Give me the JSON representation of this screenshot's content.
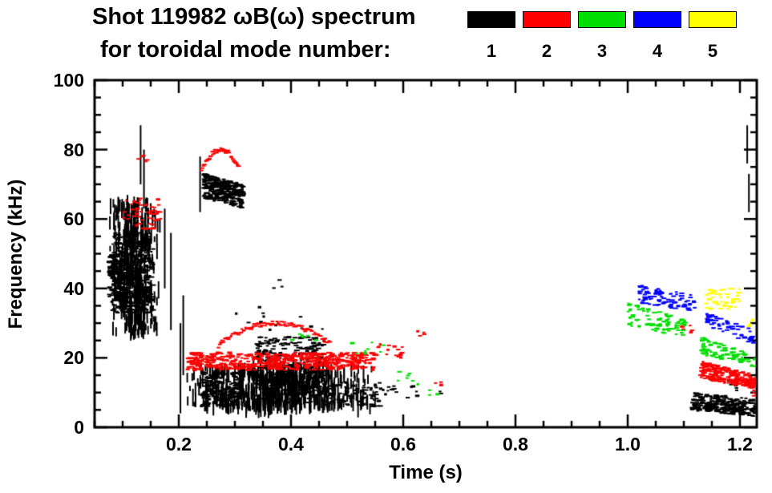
{
  "title": {
    "line1": "Shot 119982 ωB(ω) spectrum",
    "line2": "for toroidal mode number:"
  },
  "legend": {
    "position": "top-right",
    "entries": [
      {
        "label": "1",
        "color": "#000000"
      },
      {
        "label": "2",
        "color": "#ff0000"
      },
      {
        "label": "3",
        "color": "#00dd00"
      },
      {
        "label": "4",
        "color": "#0000ff"
      },
      {
        "label": "5",
        "color": "#ffff00"
      }
    ]
  },
  "chart_data": {
    "type": "scatter",
    "title": "Shot 119982 ωB(ω) spectrum for toroidal mode number",
    "xlabel": "Time (s)",
    "ylabel": "Frequency (kHz)",
    "xlim": [
      0.05,
      1.23
    ],
    "ylim": [
      0,
      100
    ],
    "xticks": [
      0.2,
      0.4,
      0.6,
      0.8,
      1.0,
      1.2
    ],
    "xtick_labels": [
      "0.2",
      "0.4",
      "0.6",
      "0.8",
      "1.0",
      "1.2"
    ],
    "yticks": [
      0,
      20,
      40,
      60,
      80,
      100
    ],
    "ytick_labels": [
      "0",
      "20",
      "40",
      "60",
      "80",
      "100"
    ],
    "x_minor_step": 0.05,
    "y_minor_step": 5,
    "grid": false,
    "series": [
      {
        "name": "toroidal mode n=1",
        "legend_label": "1",
        "color": "#000000",
        "clusters": [
          {
            "type": "striated",
            "t": [
              0.073,
              0.168
            ],
            "f": [
              27,
              65
            ],
            "n": 420,
            "seed": 11
          },
          {
            "type": "blob",
            "t": [
              0.082,
              0.155
            ],
            "f": [
              33,
              56
            ],
            "n": 380,
            "seed": 12
          },
          {
            "type": "blob",
            "t": [
              0.076,
              0.102
            ],
            "f": [
              36,
              50
            ],
            "n": 130,
            "seed": 13
          },
          {
            "type": "vline",
            "t": 0.132,
            "f": [
              70,
              87
            ]
          },
          {
            "type": "vline",
            "t": 0.138,
            "f": [
              63,
              80
            ]
          },
          {
            "type": "vline",
            "t": 0.175,
            "f": [
              40,
              63
            ]
          },
          {
            "type": "vline",
            "t": 0.186,
            "f": [
              28,
              56
            ]
          },
          {
            "type": "vline",
            "t": 0.203,
            "f": [
              4,
              30
            ]
          },
          {
            "type": "vline",
            "t": 0.208,
            "f": [
              15,
              38
            ]
          },
          {
            "type": "vline",
            "t": 0.238,
            "f": [
              62,
              78
            ]
          },
          {
            "type": "slant",
            "t": [
              0.245,
              0.315
            ],
            "fa": [
              66,
              73
            ],
            "fb": [
              63,
              70
            ],
            "n": 300,
            "seed": 14
          },
          {
            "type": "striated",
            "t": [
              0.205,
              0.56
            ],
            "f": [
              5,
              17
            ],
            "n": 620,
            "seed": 15
          },
          {
            "type": "blob",
            "t": [
              0.24,
              0.31
            ],
            "f": [
              6,
              16
            ],
            "n": 170,
            "seed": 16
          },
          {
            "type": "blob",
            "t": [
              0.335,
              0.46
            ],
            "f": [
              7,
              26
            ],
            "n": 390,
            "seed": 17
          },
          {
            "type": "scatter",
            "t": [
              0.46,
              0.56
            ],
            "f": [
              6,
              13
            ],
            "n": 90,
            "seed": 18
          },
          {
            "type": "scatter",
            "t": [
              0.56,
              0.63
            ],
            "f": [
              8,
              12
            ],
            "n": 14,
            "seed": 19
          },
          {
            "type": "scatter",
            "t": [
              0.3,
              0.46
            ],
            "f": [
              28,
              35
            ],
            "n": 12,
            "seed": 20
          },
          {
            "type": "scatter",
            "t": [
              0.36,
              0.39
            ],
            "f": [
              40,
              44
            ],
            "n": 3,
            "seed": 21
          },
          {
            "type": "scatter",
            "t": [
              0.655,
              0.668
            ],
            "f": [
              9,
              11
            ],
            "n": 2,
            "seed": 22
          },
          {
            "type": "slant",
            "t": [
              1.115,
              1.235
            ],
            "fa": [
              5,
              10
            ],
            "fb": [
              3,
              8
            ],
            "n": 300,
            "seed": 23
          },
          {
            "type": "scatter",
            "t": [
              1.18,
              1.22
            ],
            "f": [
              10,
              14
            ],
            "n": 8,
            "seed": 24
          },
          {
            "type": "vline",
            "t": 1.213,
            "f": [
              76,
              87
            ]
          },
          {
            "type": "vline",
            "t": 1.216,
            "f": [
              62,
              73
            ]
          }
        ]
      },
      {
        "name": "toroidal mode n=2",
        "legend_label": "2",
        "color": "#ff0000",
        "clusters": [
          {
            "type": "scatter",
            "t": [
              0.125,
              0.168
            ],
            "f": [
              57,
              66
            ],
            "n": 40,
            "seed": 31
          },
          {
            "type": "scatter",
            "t": [
              0.1,
              0.13
            ],
            "f": [
              60,
              66
            ],
            "n": 12,
            "seed": 32
          },
          {
            "type": "arc",
            "t": [
              0.24,
              0.307
            ],
            "f0": 74,
            "fp": 80,
            "f1": 75,
            "n": 46,
            "seed": 33
          },
          {
            "type": "scatter",
            "t": [
              0.128,
              0.148
            ],
            "f": [
              76,
              79
            ],
            "n": 5,
            "seed": 34
          },
          {
            "type": "arc",
            "t": [
              0.27,
              0.47
            ],
            "f0": 23.5,
            "fp": 30,
            "f1": 24,
            "n": 95,
            "seed": 35
          },
          {
            "type": "blob",
            "t": [
              0.215,
              0.55
            ],
            "f": [
              16.5,
              21.5
            ],
            "n": 540,
            "seed": 36
          },
          {
            "type": "scatter",
            "t": [
              0.55,
              0.6
            ],
            "f": [
              20,
              24
            ],
            "n": 16,
            "seed": 37
          },
          {
            "type": "scatter",
            "t": [
              0.62,
              0.64
            ],
            "f": [
              26,
              28
            ],
            "n": 4,
            "seed": 38
          },
          {
            "type": "scatter",
            "t": [
              0.655,
              0.67
            ],
            "f": [
              12,
              14
            ],
            "n": 4,
            "seed": 39
          },
          {
            "type": "scatter",
            "t": [
              1.09,
              1.12
            ],
            "f": [
              27,
              30
            ],
            "n": 8,
            "seed": 40
          },
          {
            "type": "slant",
            "t": [
              1.13,
              1.23
            ],
            "fa": [
              14,
              19
            ],
            "fb": [
              11,
              15
            ],
            "n": 220,
            "seed": 41
          },
          {
            "type": "scatter",
            "t": [
              1.222,
              1.232
            ],
            "f": [
              8,
              11
            ],
            "n": 6,
            "seed": 42
          }
        ]
      },
      {
        "name": "toroidal mode n=3",
        "legend_label": "3",
        "color": "#00dd00",
        "clusters": [
          {
            "type": "scatter",
            "t": [
              0.4,
              0.445
            ],
            "f": [
              25,
              28
            ],
            "n": 7,
            "seed": 51
          },
          {
            "type": "scatter",
            "t": [
              0.5,
              0.565
            ],
            "f": [
              21,
              25
            ],
            "n": 9,
            "seed": 52
          },
          {
            "type": "scatter",
            "t": [
              0.585,
              0.635
            ],
            "f": [
              12,
              16
            ],
            "n": 7,
            "seed": 53
          },
          {
            "type": "scatter",
            "t": [
              0.645,
              0.663
            ],
            "f": [
              9,
              11
            ],
            "n": 3,
            "seed": 54
          },
          {
            "type": "slant",
            "t": [
              1.0,
              1.105
            ],
            "fa": [
              29,
              36
            ],
            "fb": [
              26,
              31
            ],
            "n": 85,
            "seed": 55
          },
          {
            "type": "slant",
            "t": [
              1.13,
              1.23
            ],
            "fa": [
              21,
              26
            ],
            "fb": [
              17,
              21
            ],
            "n": 85,
            "seed": 56
          }
        ]
      },
      {
        "name": "toroidal mode n=4",
        "legend_label": "4",
        "color": "#0000ff",
        "clusters": [
          {
            "type": "slant",
            "t": [
              1.02,
              1.12
            ],
            "fa": [
              36,
              41
            ],
            "fb": [
              33,
              38
            ],
            "n": 85,
            "seed": 61
          },
          {
            "type": "slant",
            "t": [
              1.14,
              1.225
            ],
            "fa": [
              29,
              33
            ],
            "fb": [
              24,
              28
            ],
            "n": 60,
            "seed": 62
          }
        ]
      },
      {
        "name": "toroidal mode n=5",
        "legend_label": "5",
        "color": "#ffff00",
        "clusters": [
          {
            "type": "blob",
            "t": [
              1.14,
              1.2
            ],
            "f": [
              34,
              40
            ],
            "n": 48,
            "seed": 71
          },
          {
            "type": "scatter",
            "t": [
              1.205,
              1.225
            ],
            "f": [
              29,
              31
            ],
            "n": 4,
            "seed": 72
          }
        ]
      }
    ]
  },
  "layout_hints": {
    "frame_color": "#000000",
    "background": "#ffffff"
  }
}
